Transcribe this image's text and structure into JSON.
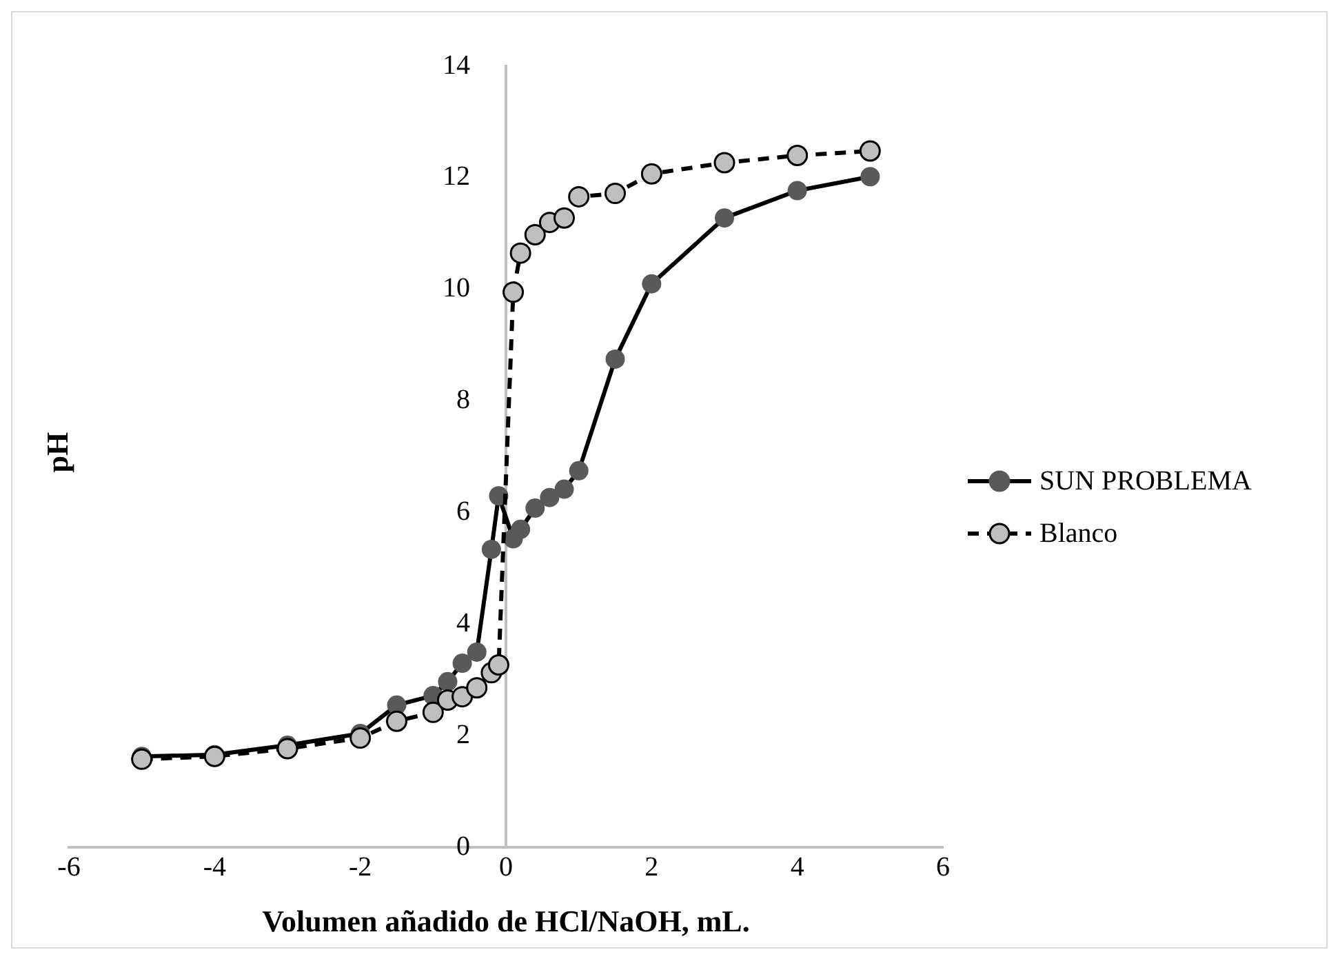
{
  "chart_data": {
    "type": "line",
    "xlabel": "Volumen añadido de HCl/NaOH, mL.",
    "ylabel": "pH",
    "xlim": [
      -6,
      6
    ],
    "xticks": [
      -6,
      -4,
      -2,
      0,
      2,
      4,
      6
    ],
    "ylim": [
      0,
      14
    ],
    "yticks": [
      0,
      2,
      4,
      6,
      8,
      10,
      12,
      14
    ],
    "grid": false,
    "legend": "right",
    "marker": "circle",
    "series": [
      {
        "name": "SUN PROBLEMA",
        "color": "#595959",
        "line_style": "solid",
        "x": [
          -5,
          -4,
          -3,
          -2,
          -1.5,
          -1,
          -0.8,
          -0.6,
          -0.4,
          -0.2,
          -0.1,
          0.1,
          0.2,
          0.4,
          0.6,
          0.8,
          1,
          1.5,
          2,
          3,
          4,
          5
        ],
        "values": [
          1.63,
          1.66,
          1.83,
          2.04,
          2.55,
          2.72,
          2.97,
          3.3,
          3.5,
          5.34,
          6.3,
          5.53,
          5.7,
          6.08,
          6.27,
          6.42,
          6.75,
          8.75,
          10.1,
          11.28,
          11.77,
          12.02
        ]
      },
      {
        "name": "Blanco",
        "color": "#bfbfbf",
        "line_style": "dashed",
        "x": [
          -5,
          -4,
          -3,
          -2,
          -1.5,
          -1,
          -0.8,
          -0.6,
          -0.4,
          -0.2,
          -0.1,
          0.1,
          0.2,
          0.4,
          0.6,
          0.8,
          1,
          1.5,
          2,
          3,
          4,
          5
        ],
        "values": [
          1.58,
          1.63,
          1.77,
          1.96,
          2.26,
          2.42,
          2.64,
          2.7,
          2.86,
          3.13,
          3.27,
          9.95,
          10.65,
          10.98,
          11.2,
          11.28,
          11.66,
          11.72,
          12.07,
          12.27,
          12.4,
          12.48
        ]
      }
    ]
  }
}
